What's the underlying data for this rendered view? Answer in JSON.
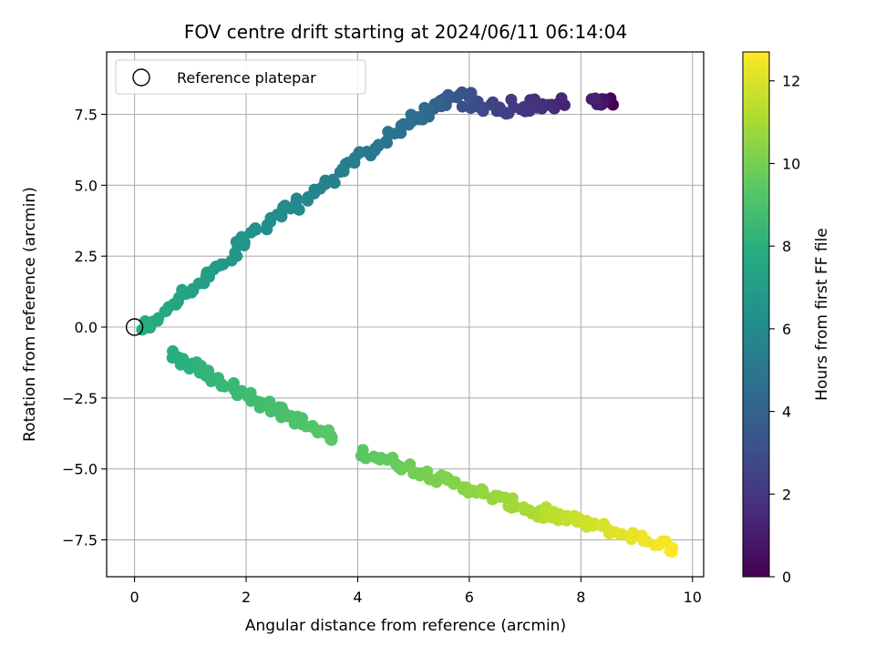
{
  "chart_data": {
    "type": "scatter",
    "title": "FOV centre drift starting at 2024/06/11 06:14:04",
    "xlabel": "Angular distance from reference (arcmin)",
    "ylabel": "Rotation from reference (arcmin)",
    "xlim": [
      -0.5,
      10.2
    ],
    "ylim": [
      -8.8,
      9.7
    ],
    "xticks": [
      "0",
      "2",
      "4",
      "6",
      "8",
      "10"
    ],
    "xtick_values": [
      0,
      2,
      4,
      6,
      8,
      10
    ],
    "yticks": [
      "−7.5",
      "−5.0",
      "−2.5",
      "0.0",
      "2.5",
      "5.0",
      "7.5"
    ],
    "ytick_values": [
      -7.5,
      -5.0,
      -2.5,
      0.0,
      2.5,
      5.0,
      7.5
    ],
    "grid": true,
    "colormap": "viridis",
    "colorbar": {
      "label": "Hours from first FF file",
      "range": [
        0,
        12.7
      ],
      "ticks": [
        "0",
        "2",
        "4",
        "6",
        "8",
        "10",
        "12"
      ],
      "tick_values": [
        0,
        2,
        4,
        6,
        8,
        10,
        12
      ]
    },
    "legend": {
      "placement": "top-left",
      "entries": [
        {
          "label": "Reference platepar",
          "marker": "open-circle",
          "x": 0,
          "y": 0
        }
      ]
    },
    "segments": [
      {
        "hours": [
          0.0,
          1.2
        ],
        "start": [
          8.55,
          7.9
        ],
        "end": [
          8.2,
          7.95
        ],
        "n": 10,
        "spread": 0.2
      },
      {
        "hours": [
          1.2,
          3.0
        ],
        "start": [
          7.7,
          7.9
        ],
        "end": [
          6.0,
          7.7
        ],
        "n": 34,
        "spread": 0.32
      },
      {
        "hours": [
          3.0,
          4.6
        ],
        "start": [
          6.0,
          8.2
        ],
        "end": [
          5.0,
          7.4
        ],
        "n": 26,
        "spread": 0.3
      },
      {
        "hours": [
          4.6,
          6.6
        ],
        "start": [
          5.0,
          7.3
        ],
        "end": [
          1.8,
          2.8
        ],
        "n": 58,
        "spread": 0.22
      },
      {
        "hours": [
          6.6,
          7.9
        ],
        "start": [
          1.8,
          2.6
        ],
        "end": [
          0.1,
          -0.2
        ],
        "n": 34,
        "spread": 0.2
      },
      {
        "hours": [
          7.9,
          9.4
        ],
        "start": [
          0.6,
          -0.9
        ],
        "end": [
          3.6,
          -4.0
        ],
        "n": 62,
        "spread": 0.22
      },
      {
        "hours": [
          9.4,
          11.3
        ],
        "start": [
          4.1,
          -4.4
        ],
        "end": [
          7.6,
          -6.8
        ],
        "n": 72,
        "spread": 0.2
      },
      {
        "hours": [
          11.3,
          12.7
        ],
        "start": [
          7.3,
          -6.5
        ],
        "end": [
          9.7,
          -7.8
        ],
        "n": 40,
        "spread": 0.2
      }
    ]
  }
}
